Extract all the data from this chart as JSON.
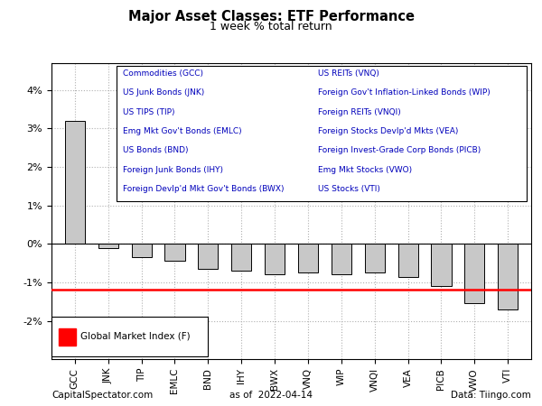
{
  "title": "Major Asset Classes: ETF Performance",
  "subtitle": "1 week % total return",
  "categories": [
    "GCC",
    "JNK",
    "TIP",
    "EMLC",
    "BND",
    "IHY",
    "BWX",
    "VNQ",
    "WIP",
    "VNQI",
    "VEA",
    "PICB",
    "VWO",
    "VTI"
  ],
  "values": [
    3.2,
    -0.1,
    -0.35,
    -0.45,
    -0.65,
    -0.7,
    -0.8,
    -0.75,
    -0.8,
    -0.75,
    -0.85,
    -1.1,
    -1.55,
    -1.7
  ],
  "bar_color": "#c8c8c8",
  "bar_edge_color": "#000000",
  "hline_value": -1.2,
  "hline_color": "#ff0000",
  "hline_linewidth": 1.8,
  "ylim": [
    -3.0,
    4.7
  ],
  "yticks": [
    -2,
    -1,
    0,
    1,
    2,
    3,
    4
  ],
  "ytick_labels": [
    "-2%",
    "-1%",
    "0%",
    "1%",
    "2%",
    "3%",
    "4%"
  ],
  "legend_labels_left": [
    "Commodities (GCC)",
    "US Junk Bonds (JNK)",
    "US TIPS (TIP)",
    "Emg Mkt Gov't Bonds (EMLC)",
    "US Bonds (BND)",
    "Foreign Junk Bonds (IHY)",
    "Foreign Devlp'd Mkt Gov't Bonds (BWX)"
  ],
  "legend_labels_right": [
    "US REITs (VNQ)",
    "Foreign Gov't Inflation-Linked Bonds (WIP)",
    "Foreign REITs (VNQI)",
    "Foreign Stocks Devlp'd Mkts (VEA)",
    "Foreign Invest-Grade Corp Bonds (PICB)",
    "Emg Mkt Stocks (VWO)",
    "US Stocks (VTI)"
  ],
  "legend_text_color": "#0000bb",
  "legend_box_facecolor": "#ffffff",
  "legend_box_edgecolor": "#000000",
  "footer_left": "CapitalSpectator.com",
  "footer_center": "as of  2022-04-14",
  "footer_right": "Data: Tiingo.com",
  "background_color": "#ffffff",
  "grid_color": "#b0b0b0",
  "grid_linestyle": ":",
  "global_market_label": "Global Market Index (F)"
}
